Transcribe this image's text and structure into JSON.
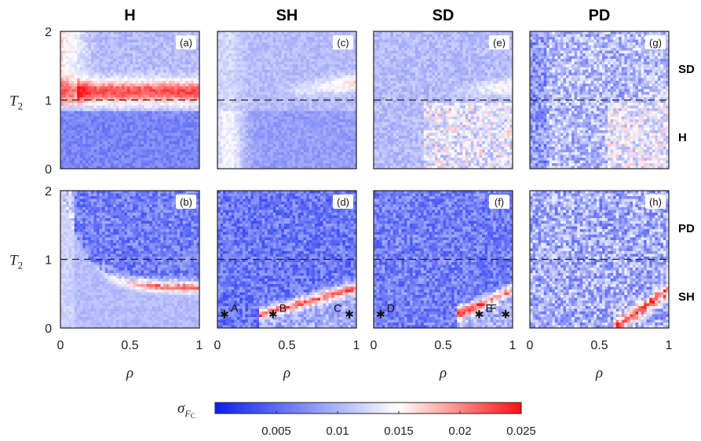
{
  "chart_data": {
    "type": "heatmap",
    "columns": [
      {
        "id": "H",
        "title": "H"
      },
      {
        "id": "SH",
        "title": "SH"
      },
      {
        "id": "SD",
        "title": "SD"
      },
      {
        "id": "PD",
        "title": "PD"
      }
    ],
    "row_labels_right": [
      {
        "row": 0,
        "upper": "SD",
        "lower": "H"
      },
      {
        "row": 1,
        "upper": "PD",
        "lower": "SH"
      }
    ],
    "panels": [
      {
        "tag": "(a)",
        "row": 0,
        "col": 0
      },
      {
        "tag": "(c)",
        "row": 0,
        "col": 1
      },
      {
        "tag": "(e)",
        "row": 0,
        "col": 2
      },
      {
        "tag": "(g)",
        "row": 0,
        "col": 3
      },
      {
        "tag": "(b)",
        "row": 1,
        "col": 0
      },
      {
        "tag": "(d)",
        "row": 1,
        "col": 1
      },
      {
        "tag": "(f)",
        "row": 1,
        "col": 2
      },
      {
        "tag": "(h)",
        "row": 1,
        "col": 3
      }
    ],
    "xlabel": "ρ",
    "ylabel": "T",
    "ylabel_sub": "2",
    "xlim": [
      0,
      1
    ],
    "ylim": [
      0,
      2
    ],
    "xticks": [
      "0",
      "0.5",
      "1"
    ],
    "yticks": [
      "0",
      "1",
      "2"
    ],
    "reference_line_y": 1,
    "points": [
      {
        "label": "A",
        "panel": "(d)",
        "x": 0.05,
        "y": 0.2
      },
      {
        "label": "B",
        "panel": "(d)",
        "x": 0.4,
        "y": 0.2
      },
      {
        "label": "C",
        "panel": "(d)",
        "x": 0.95,
        "y": 0.2
      },
      {
        "label": "D",
        "panel": "(f)",
        "x": 0.05,
        "y": 0.2
      },
      {
        "label": "E",
        "panel": "(f)",
        "x": 0.76,
        "y": 0.2
      },
      {
        "label": "F",
        "panel": "(f)",
        "x": 0.95,
        "y": 0.2
      }
    ],
    "colorbar": {
      "label": "σ",
      "label_sub": "F",
      "label_subsub": "C",
      "range": [
        0,
        0.025
      ],
      "ticks": [
        "0.005",
        "0.01",
        "0.015",
        "0.02",
        "0.025"
      ],
      "tick_values": [
        0.005,
        0.01,
        0.015,
        0.02,
        0.025
      ],
      "colors": [
        "#0b1ff0",
        "#ffffff",
        "#ff1010"
      ]
    }
  }
}
